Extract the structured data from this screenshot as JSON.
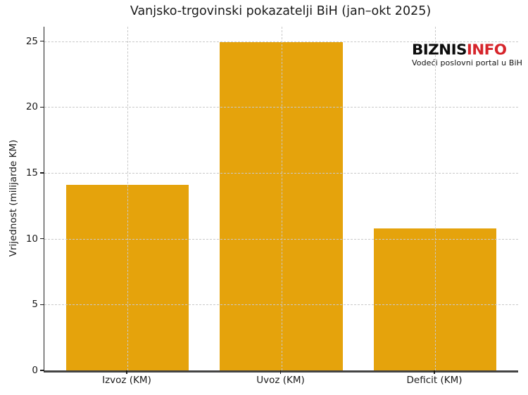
{
  "title": "Vanjsko-trgovinski pokazatelji BiH (jan–okt 2025)",
  "watermark": {
    "brand_black": "BIZNIS",
    "brand_red": "INFO",
    "tagline": "Vodeći poslovni portal u BiH",
    "brand_red_color": "#d6252b"
  },
  "chart_data": {
    "type": "bar",
    "title": "Vanjsko-trgovinski pokazatelji BiH (jan–okt 2025)",
    "categories": [
      "Izvoz (KM)",
      "Uvoz (KM)",
      "Deficit (KM)"
    ],
    "values": [
      14.1,
      24.9,
      10.8
    ],
    "xlabel": "",
    "ylabel": "Vrijednost (milijarde KM)",
    "ylim": [
      0,
      26.1
    ],
    "yticks": [
      0,
      5,
      10,
      15,
      20,
      25
    ],
    "bar_color": "#e5a30c",
    "grid": "dashed, horizontal and vertical, drawn over bars",
    "legend_position": "none",
    "background": "#ffffff"
  }
}
